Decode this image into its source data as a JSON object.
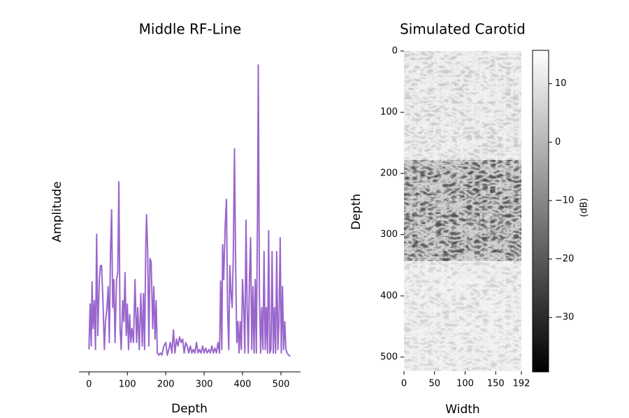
{
  "chart_data": [
    {
      "type": "line",
      "title": "Middle RF-Line",
      "xlabel": "Depth",
      "ylabel": "Amplitude",
      "color": "#9966cc",
      "xlim": [
        -26,
        551
      ],
      "xticks": [
        0,
        100,
        200,
        300,
        400,
        500
      ],
      "ylim": [
        0,
        460
      ],
      "x": [
        0,
        3,
        6,
        8,
        11,
        14,
        17,
        20,
        23,
        27,
        30,
        33,
        37,
        40,
        43,
        47,
        50,
        53,
        56,
        59,
        62,
        65,
        68,
        72,
        75,
        78,
        81,
        84,
        88,
        91,
        94,
        97,
        100,
        103,
        106,
        109,
        112,
        116,
        120,
        124,
        127,
        131,
        135,
        139,
        142,
        145,
        148,
        150,
        153,
        156,
        159,
        162,
        166,
        169,
        172,
        175,
        178,
        182,
        186,
        190,
        195,
        200,
        204,
        208,
        212,
        216,
        220,
        224,
        228,
        232,
        236,
        240,
        244,
        248,
        252,
        256,
        260,
        264,
        268,
        272,
        276,
        280,
        284,
        288,
        292,
        296,
        300,
        304,
        308,
        312,
        316,
        320,
        324,
        328,
        332,
        336,
        340,
        343,
        346,
        348,
        351,
        355,
        358,
        361,
        364,
        367,
        370,
        373,
        376,
        379,
        382,
        385,
        388,
        391,
        394,
        397,
        400,
        403,
        406,
        409,
        412,
        415,
        418,
        421,
        424,
        427,
        430,
        433,
        436,
        439,
        441,
        444,
        447,
        450,
        453,
        456,
        459,
        462,
        465,
        468,
        471,
        474,
        477,
        480,
        483,
        486,
        489,
        492,
        495,
        498,
        501,
        504,
        507,
        510,
        513,
        516,
        520,
        524
      ],
      "values": [
        32,
        97,
        37,
        129,
        62,
        102,
        32,
        197,
        52,
        132,
        152,
        152,
        92,
        32,
        72,
        92,
        122,
        42,
        172,
        232,
        92,
        132,
        42,
        132,
        142,
        272,
        62,
        32,
        102,
        72,
        142,
        52,
        97,
        32,
        82,
        42,
        62,
        42,
        132,
        42,
        92,
        32,
        112,
        37,
        112,
        32,
        182,
        225,
        172,
        37,
        162,
        157,
        62,
        122,
        47,
        102,
        27,
        24,
        27,
        24,
        37,
        42,
        24,
        32,
        42,
        27,
        60,
        27,
        47,
        37,
        50,
        42,
        47,
        27,
        42,
        37,
        27,
        37,
        27,
        32,
        27,
        42,
        27,
        32,
        27,
        37,
        27,
        34,
        27,
        32,
        27,
        37,
        27,
        34,
        27,
        42,
        27,
        130,
        32,
        182,
        132,
        212,
        247,
        92,
        32,
        152,
        112,
        92,
        172,
        319,
        152,
        42,
        72,
        27,
        72,
        32,
        132,
        92,
        27,
        217,
        92,
        27,
        132,
        192,
        32,
        122,
        27,
        132,
        27,
        232,
        439,
        112,
        27,
        92,
        32,
        172,
        32,
        92,
        27,
        202,
        27,
        32,
        172,
        27,
        92,
        27,
        172,
        32,
        72,
        192,
        27,
        122,
        32,
        72,
        32,
        27,
        24,
        22
      ]
    },
    {
      "type": "image",
      "title": "Simulated Carotid",
      "xlabel": "Width",
      "ylabel": "Depth",
      "xlim": [
        0,
        192
      ],
      "xticks": [
        0,
        50,
        100,
        150,
        192
      ],
      "ylim": [
        523,
        0
      ],
      "yticks": [
        0,
        100,
        200,
        300,
        400,
        500
      ],
      "layers": [
        {
          "from": 0,
          "to": 178,
          "value": 4
        },
        {
          "from": 178,
          "to": 343,
          "value": -22
        },
        {
          "from": 343,
          "to": 523,
          "value": 6
        }
      ],
      "colorbar": {
        "label": "(dB)",
        "lim": [
          -39.3,
          15.7
        ],
        "ticks": [
          10,
          0,
          {
            "value": -10,
            "label": "−10"
          },
          {
            "value": -20,
            "label": "−20"
          },
          {
            "value": -30,
            "label": "−30"
          }
        ]
      }
    }
  ]
}
